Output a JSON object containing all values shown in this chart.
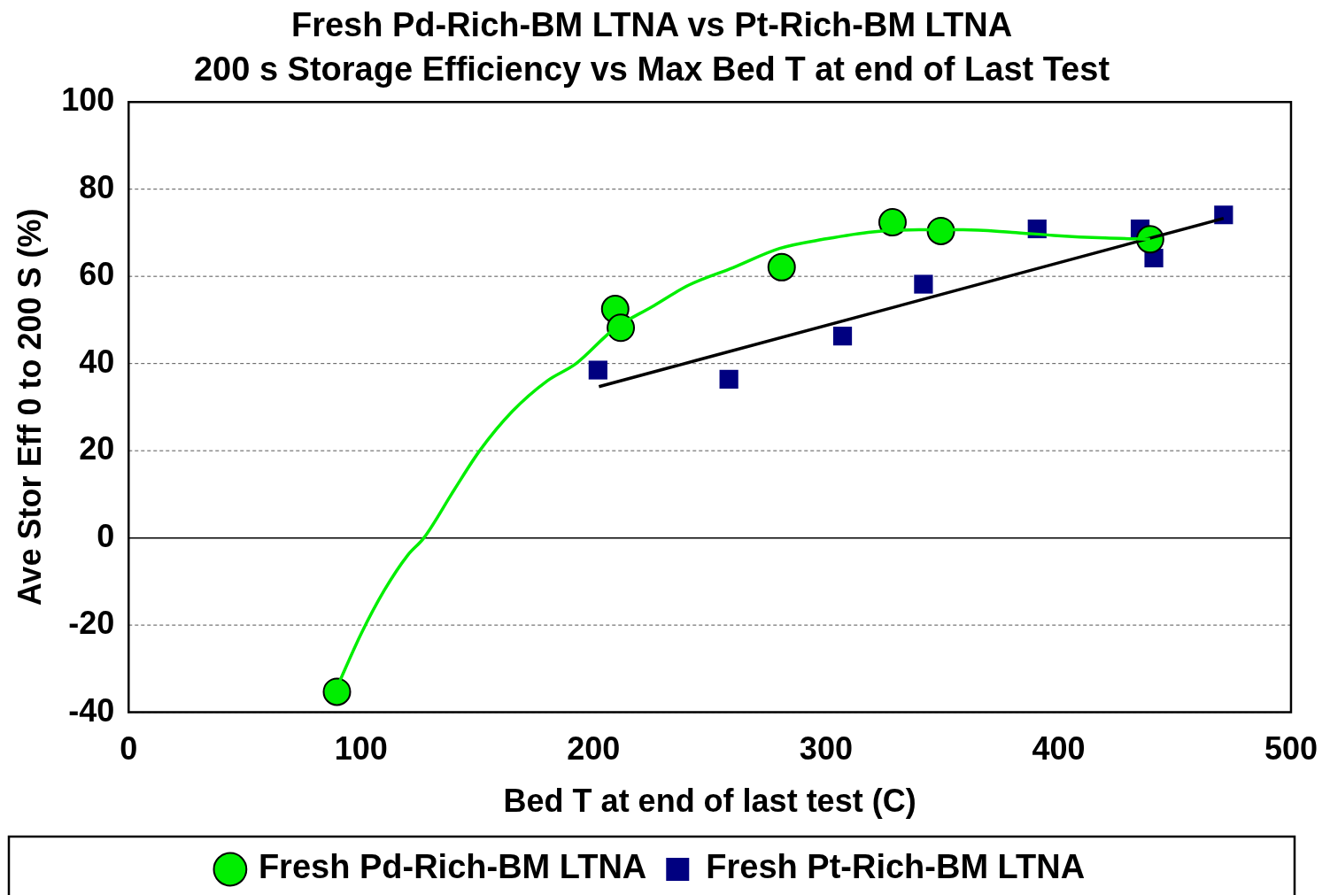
{
  "chart_data": {
    "type": "scatter",
    "title": "Fresh Pd-Rich-BM LTNA vs Pt-Rich-BM LTNA",
    "subtitle": "200 s Storage Efficiency vs Max Bed T at end of Last Test",
    "xlabel": "Bed T at end of last test (C)",
    "ylabel": "Ave Stor Eff 0 to 200 S (%)",
    "xlim": [
      0,
      500
    ],
    "xticks": [
      0,
      100,
      200,
      300,
      400,
      500
    ],
    "ylim": [
      -40,
      100
    ],
    "yticks": [
      -40,
      -20,
      0,
      20,
      40,
      60,
      80,
      100
    ],
    "grid": "y",
    "legend": "bottom",
    "series": [
      {
        "name": "Fresh Pd-Rich-BM LTNA",
        "color": "#00ee00",
        "marker": "circle",
        "x": [
          89.6,
          209.3,
          211.7,
          280.9,
          328.6,
          349.4,
          439.4
        ],
        "values": [
          -35.3,
          52.5,
          48.2,
          62.1,
          72.4,
          70.4,
          68.5
        ]
      },
      {
        "name": "Fresh Pt-Rich-BM LTNA",
        "color": "#000080",
        "marker": "square",
        "x": [
          201.9,
          258.2,
          307.1,
          341.9,
          390.8,
          435.1,
          441.0,
          471.0
        ],
        "values": [
          38.5,
          36.4,
          46.3,
          58.2,
          70.9,
          70.9,
          64.2,
          74.1
        ]
      },
      {
        "type": "line",
        "color": "#00ee00",
        "marker": "none",
        "x": [
          89.6,
          100,
          110,
          120,
          127,
          140,
          151,
          165,
          180,
          192.5,
          209,
          225,
          241,
          260,
          280,
          300,
          320,
          340,
          359,
          380,
          398,
          420,
          439.4
        ],
        "values": [
          -34.3,
          -22,
          -12,
          -4,
          0,
          11,
          20,
          29,
          36,
          40,
          48,
          53,
          58,
          62,
          66.4,
          68.6,
          70.2,
          70.7,
          70.7,
          70.1,
          69.4,
          68.8,
          68.5
        ]
      },
      {
        "type": "line",
        "color": "#000000",
        "marker": "none",
        "x": [
          202.3,
          471
        ],
        "values": [
          34.7,
          73.3
        ]
      }
    ]
  }
}
